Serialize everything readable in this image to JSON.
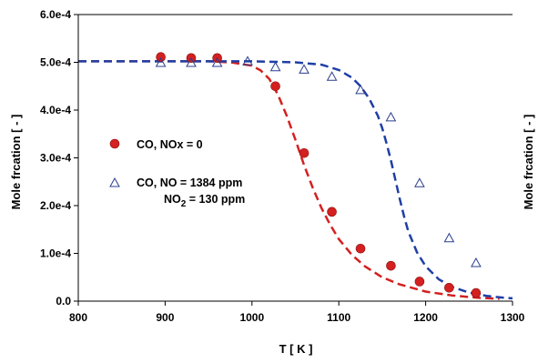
{
  "chart_data": {
    "type": "scatter",
    "xlabel": "T [ K ]",
    "ylabel_left": "Mole frcation [ - ]",
    "ylabel_right": "Mole frcation [ - ]",
    "xlim": [
      800,
      1300
    ],
    "ylim": [
      0,
      0.0006
    ],
    "x_ticks": [
      800,
      900,
      1000,
      1100,
      1200,
      1300
    ],
    "x_tick_labels": [
      "800",
      "900",
      "1000",
      "1100",
      "1200",
      "1300"
    ],
    "y_ticks": [
      0,
      0.0001,
      0.0002,
      0.0003,
      0.0004,
      0.0005,
      0.0006
    ],
    "y_tick_labels": [
      "0.0",
      "1.0e-4",
      "2.0e-4",
      "3.0e-4",
      "4.0e-4",
      "5.0e-4",
      "6.0e-4"
    ],
    "legend_placement": "center-left",
    "series": [
      {
        "name": "CO, NOx = 0",
        "marker": "filled-circle",
        "color": "#d42020",
        "x": [
          895,
          930,
          960,
          1027,
          1060,
          1092,
          1125,
          1160,
          1193,
          1227,
          1258
        ],
        "y": [
          0.000511,
          0.000509,
          0.000509,
          0.00045,
          0.00031,
          0.000187,
          0.00011,
          7.4e-05,
          4.1e-05,
          2.8e-05,
          1.7e-05
        ]
      },
      {
        "name": "CO, NO = 1384 ppm",
        "name_line2_prefix": "NO",
        "name_line2_sub": "2",
        "name_line2_suffix": " = 130 ppm",
        "marker": "open-triangle",
        "color": "#2a3d8f",
        "x": [
          895,
          930,
          960,
          995,
          1027,
          1060,
          1092,
          1125,
          1160,
          1193,
          1227,
          1258
        ],
        "y": [
          0.000499,
          0.000499,
          0.000499,
          0.000502,
          0.00049,
          0.000485,
          0.00047,
          0.000442,
          0.000385,
          0.000247,
          0.000132,
          8e-05
        ]
      }
    ],
    "model_curves": [
      {
        "color": "#d42020",
        "style": "dashed",
        "x": [
          800,
          950,
          975,
          1000,
          1010,
          1020,
          1030,
          1040,
          1050,
          1060,
          1070,
          1080,
          1090,
          1100,
          1115,
          1130,
          1150,
          1170,
          1200,
          1230,
          1260,
          1285
        ],
        "y": [
          0.000502,
          0.000502,
          0.0005,
          0.000493,
          0.000483,
          0.000465,
          0.000432,
          0.000388,
          0.000338,
          0.000285,
          0.000237,
          0.000195,
          0.00016,
          0.00013,
          9.7e-05,
          7.3e-05,
          5e-05,
          3.5e-05,
          2e-05,
          1.2e-05,
          7e-06,
          5e-06
        ]
      },
      {
        "color": "#1f3fa6",
        "style": "dashed",
        "x": [
          800,
          1000,
          1050,
          1080,
          1100,
          1115,
          1125,
          1135,
          1145,
          1150,
          1155,
          1160,
          1165,
          1170,
          1175,
          1180,
          1190,
          1200,
          1215,
          1230,
          1250,
          1270,
          1290,
          1300
        ],
        "y": [
          0.000502,
          0.000502,
          0.0005,
          0.000495,
          0.000484,
          0.000468,
          0.00045,
          0.000424,
          0.000388,
          0.000362,
          0.00033,
          0.000295,
          0.000255,
          0.000215,
          0.000178,
          0.000146,
          0.000102,
          7.3e-05,
          4.6e-05,
          3e-05,
          1.8e-05,
          1.1e-05,
          7e-06,
          6e-06
        ]
      }
    ]
  }
}
